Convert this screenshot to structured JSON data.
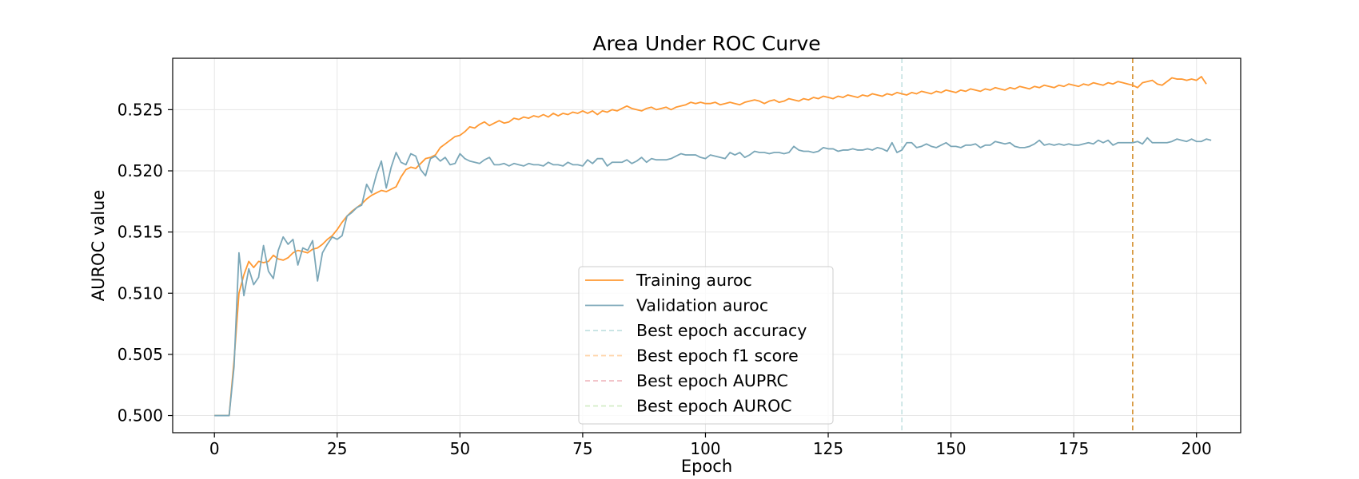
{
  "chart_data": {
    "type": "line",
    "title": "Area Under ROC Curve",
    "xlabel": "Epoch",
    "ylabel": "AUROC value",
    "xlim": [
      -8.5,
      209
    ],
    "ylim": [
      0.4986,
      0.5292
    ],
    "xticks": [
      0,
      25,
      50,
      75,
      100,
      125,
      150,
      175,
      200
    ],
    "yticks": [
      0.5,
      0.505,
      0.51,
      0.515,
      0.52,
      0.525
    ],
    "ytick_labels": [
      "0.500",
      "0.505",
      "0.510",
      "0.515",
      "0.520",
      "0.525"
    ],
    "grid": true,
    "legend_position": "lower-center",
    "series": [
      {
        "name": "Training auroc",
        "color": "#ff9933",
        "values": [
          0.5,
          0.5,
          0.5,
          0.5,
          0.5045,
          0.51,
          0.5115,
          0.5126,
          0.5121,
          0.5126,
          0.5125,
          0.5126,
          0.5131,
          0.5128,
          0.5127,
          0.5129,
          0.5133,
          0.5135,
          0.5134,
          0.5133,
          0.5136,
          0.5137,
          0.514,
          0.5144,
          0.5147,
          0.5152,
          0.5158,
          0.5163,
          0.5167,
          0.517,
          0.5173,
          0.5177,
          0.518,
          0.5182,
          0.5184,
          0.5183,
          0.5185,
          0.5187,
          0.5195,
          0.5201,
          0.5203,
          0.5202,
          0.5206,
          0.521,
          0.5211,
          0.5213,
          0.5219,
          0.5222,
          0.5225,
          0.5228,
          0.5229,
          0.5232,
          0.5236,
          0.5235,
          0.5238,
          0.524,
          0.5237,
          0.5239,
          0.5241,
          0.5239,
          0.524,
          0.5243,
          0.5242,
          0.5244,
          0.5243,
          0.5245,
          0.5244,
          0.5246,
          0.5244,
          0.5247,
          0.5245,
          0.5247,
          0.5246,
          0.5248,
          0.5247,
          0.5249,
          0.5247,
          0.5249,
          0.5246,
          0.5249,
          0.5248,
          0.525,
          0.5249,
          0.5251,
          0.5253,
          0.5251,
          0.525,
          0.5249,
          0.5251,
          0.5252,
          0.525,
          0.5251,
          0.5252,
          0.525,
          0.5252,
          0.5253,
          0.5254,
          0.5256,
          0.5255,
          0.5256,
          0.5255,
          0.5255,
          0.5256,
          0.5254,
          0.5255,
          0.5256,
          0.5255,
          0.5254,
          0.5256,
          0.5257,
          0.5258,
          0.5257,
          0.5255,
          0.5257,
          0.5258,
          0.5256,
          0.5257,
          0.5259,
          0.5258,
          0.5257,
          0.5259,
          0.5258,
          0.526,
          0.5259,
          0.5261,
          0.526,
          0.5259,
          0.5261,
          0.526,
          0.5262,
          0.5261,
          0.526,
          0.5262,
          0.5261,
          0.5263,
          0.5262,
          0.5261,
          0.5263,
          0.5262,
          0.5264,
          0.5263,
          0.5262,
          0.5264,
          0.5263,
          0.5265,
          0.5264,
          0.5263,
          0.5265,
          0.5264,
          0.5266,
          0.5265,
          0.5264,
          0.5266,
          0.5265,
          0.5267,
          0.5266,
          0.5265,
          0.5267,
          0.5266,
          0.5268,
          0.5267,
          0.5266,
          0.5268,
          0.5267,
          0.5269,
          0.5268,
          0.5267,
          0.5269,
          0.5268,
          0.527,
          0.5269,
          0.5268,
          0.527,
          0.5269,
          0.5271,
          0.527,
          0.5269,
          0.5271,
          0.527,
          0.5272,
          0.5271,
          0.527,
          0.5272,
          0.5271,
          0.5273,
          0.5272,
          0.5271,
          0.527,
          0.5268,
          0.5272,
          0.5273,
          0.5274,
          0.5271,
          0.527,
          0.5273,
          0.5276,
          0.5275,
          0.5275,
          0.5274,
          0.5275,
          0.5274,
          0.5277,
          0.5271
        ]
      },
      {
        "name": "Validation auroc",
        "color": "#7ba7b8",
        "values": [
          0.5,
          0.5,
          0.5,
          0.5,
          0.504,
          0.5133,
          0.5098,
          0.512,
          0.5107,
          0.5113,
          0.5139,
          0.5118,
          0.5112,
          0.5135,
          0.5146,
          0.514,
          0.5144,
          0.5123,
          0.5137,
          0.5135,
          0.5143,
          0.511,
          0.5133,
          0.514,
          0.5146,
          0.5144,
          0.5147,
          0.5163,
          0.5166,
          0.517,
          0.5172,
          0.5189,
          0.5182,
          0.5197,
          0.5208,
          0.5186,
          0.5203,
          0.5215,
          0.5207,
          0.5205,
          0.5214,
          0.5212,
          0.5201,
          0.5196,
          0.521,
          0.5212,
          0.5208,
          0.5211,
          0.5205,
          0.5206,
          0.5214,
          0.521,
          0.5208,
          0.5207,
          0.5206,
          0.5209,
          0.5211,
          0.5205,
          0.5205,
          0.5206,
          0.5204,
          0.5206,
          0.5205,
          0.5204,
          0.5206,
          0.5205,
          0.5205,
          0.5204,
          0.5207,
          0.5205,
          0.5205,
          0.5204,
          0.5207,
          0.5205,
          0.5205,
          0.5204,
          0.5209,
          0.5206,
          0.521,
          0.521,
          0.5204,
          0.5207,
          0.5207,
          0.5207,
          0.5209,
          0.5206,
          0.5208,
          0.5211,
          0.5207,
          0.521,
          0.5209,
          0.5209,
          0.5209,
          0.521,
          0.5212,
          0.5214,
          0.5213,
          0.5213,
          0.5213,
          0.5211,
          0.521,
          0.5213,
          0.5212,
          0.5211,
          0.521,
          0.5215,
          0.5213,
          0.5215,
          0.5211,
          0.5213,
          0.5216,
          0.5215,
          0.5215,
          0.5214,
          0.5215,
          0.5215,
          0.5214,
          0.5215,
          0.522,
          0.5217,
          0.5216,
          0.5216,
          0.5215,
          0.5216,
          0.5219,
          0.5218,
          0.5218,
          0.5216,
          0.5217,
          0.5217,
          0.5218,
          0.5217,
          0.5217,
          0.5218,
          0.5217,
          0.5219,
          0.5218,
          0.5216,
          0.5223,
          0.5215,
          0.5217,
          0.5223,
          0.5223,
          0.5219,
          0.522,
          0.5222,
          0.522,
          0.5219,
          0.5221,
          0.5223,
          0.522,
          0.522,
          0.5219,
          0.5221,
          0.5221,
          0.5222,
          0.5219,
          0.5221,
          0.5221,
          0.5224,
          0.5223,
          0.5222,
          0.5223,
          0.522,
          0.5219,
          0.5219,
          0.522,
          0.5222,
          0.5225,
          0.5221,
          0.5222,
          0.5221,
          0.5222,
          0.5221,
          0.5222,
          0.5221,
          0.5221,
          0.5222,
          0.5223,
          0.5222,
          0.5225,
          0.5223,
          0.5225,
          0.5221,
          0.5223,
          0.5223,
          0.5223,
          0.5223,
          0.5224,
          0.5222,
          0.5227,
          0.5223,
          0.5223,
          0.5223,
          0.5223,
          0.5224,
          0.5226,
          0.5225,
          0.5224,
          0.5226,
          0.5224,
          0.5224,
          0.5226,
          0.5225
        ]
      }
    ],
    "vlines": [
      {
        "name": "Best epoch accuracy",
        "x": 140,
        "color": "#a9d4d4",
        "alpha": 0.7
      },
      {
        "name": "Best epoch f1 score",
        "x": 187,
        "color": "#ffb76b",
        "alpha": 0.6
      },
      {
        "name": "Best epoch AUPRC",
        "x": 187,
        "color": "#e8919a",
        "alpha": 0.6
      },
      {
        "name": "Best epoch AUROC",
        "x": 187,
        "color": "#b8e0a0",
        "alpha": 0.6
      }
    ]
  },
  "page": {
    "background": "#ffffff",
    "grid_color": "#e6e6e6",
    "axis_color": "#000000"
  }
}
